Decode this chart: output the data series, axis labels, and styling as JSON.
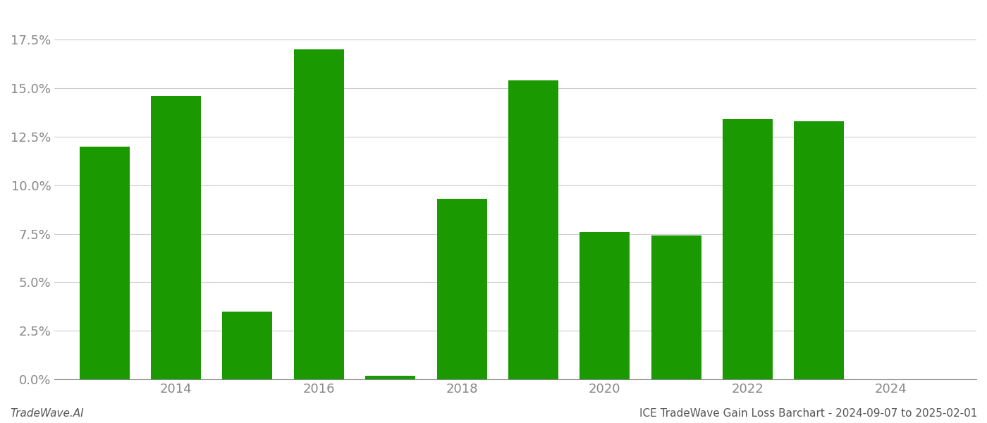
{
  "years": [
    2013,
    2014,
    2015,
    2016,
    2017,
    2018,
    2019,
    2020,
    2021,
    2022,
    2023
  ],
  "values": [
    0.12,
    0.146,
    0.035,
    0.17,
    0.002,
    0.093,
    0.154,
    0.076,
    0.074,
    0.134,
    0.133
  ],
  "bar_color": "#1a9900",
  "background_color": "#ffffff",
  "grid_color": "#cccccc",
  "ylim": [
    0,
    0.19
  ],
  "yticks": [
    0.0,
    0.025,
    0.05,
    0.075,
    0.1,
    0.125,
    0.15,
    0.175
  ],
  "xtick_years": [
    2014,
    2016,
    2018,
    2020,
    2022,
    2024
  ],
  "xlim": [
    2012.3,
    2025.2
  ],
  "bar_width": 0.7,
  "footer_left": "TradeWave.AI",
  "footer_right": "ICE TradeWave Gain Loss Barchart - 2024-09-07 to 2025-02-01",
  "tick_fontsize": 13,
  "footer_fontsize": 11,
  "tick_color": "#888888",
  "spine_color": "#888888",
  "footer_color": "#555555"
}
